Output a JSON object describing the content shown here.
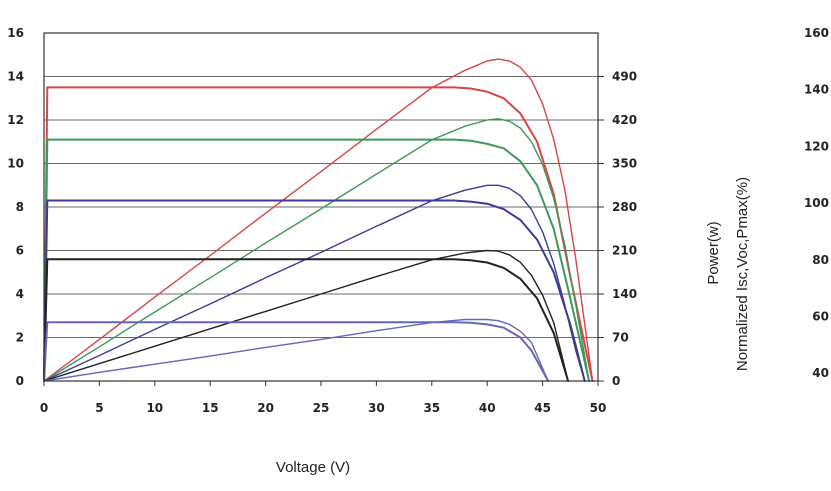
{
  "chart_data": {
    "type": "line",
    "title": "",
    "xlabel": "Voltage (V)",
    "ylabel_right": "Power(w)",
    "ylabel_far_right": "Normalized Isc,Voc,Pmax(%)",
    "xlim": [
      0,
      50
    ],
    "ylim_left": [
      0,
      16
    ],
    "ylim_right": [
      0,
      560
    ],
    "x_ticks": [
      "0",
      "5",
      "10",
      "15",
      "20",
      "25",
      "30",
      "35",
      "40",
      "45",
      "50"
    ],
    "y_ticks_left": [
      "0",
      "2",
      "4",
      "6",
      "8",
      "10",
      "12",
      "14",
      "16"
    ],
    "y_ticks_right": [
      "0",
      "70",
      "140",
      "210",
      "280",
      "350",
      "420",
      "490"
    ],
    "y_ticks_far_right": [
      "40",
      "60",
      "80",
      "100",
      "120",
      "140",
      "160"
    ],
    "grid": "horizontal",
    "series": [
      {
        "color": "#d94545",
        "kind": "current",
        "x": [
          0,
          0.3,
          37,
          38.5,
          40,
          41.5,
          43,
          44.5,
          46,
          47.5,
          49.5
        ],
        "values": [
          0,
          13.5,
          13.5,
          13.45,
          13.3,
          13.0,
          12.3,
          11.0,
          8.6,
          4.8,
          0
        ]
      },
      {
        "color": "#d94545",
        "kind": "power",
        "x": [
          0,
          5,
          10,
          15,
          20,
          25,
          30,
          35,
          38,
          40,
          41,
          42,
          43,
          44,
          45,
          46,
          47,
          48,
          49.5
        ],
        "values": [
          0,
          67,
          135,
          202,
          270,
          337,
          405,
          472,
          500,
          515,
          518,
          515,
          505,
          484,
          446,
          389,
          308,
          196,
          0
        ]
      },
      {
        "color": "#3a9a5a",
        "kind": "current",
        "x": [
          0,
          0.3,
          37,
          38.5,
          40,
          41.5,
          43,
          44.5,
          46,
          47.5,
          49.2
        ],
        "values": [
          0,
          11.1,
          11.1,
          11.05,
          10.9,
          10.7,
          10.1,
          9.0,
          7.0,
          3.8,
          0
        ]
      },
      {
        "color": "#3a9a5a",
        "kind": "power",
        "x": [
          0,
          5,
          10,
          15,
          20,
          25,
          30,
          35,
          38,
          40,
          41,
          42,
          43,
          44,
          45,
          46,
          47,
          48,
          49.2
        ],
        "values": [
          0,
          55,
          111,
          166,
          222,
          277,
          333,
          388,
          410,
          420,
          422,
          418,
          407,
          385,
          348,
          294,
          219,
          122,
          0
        ]
      },
      {
        "color": "#3b3b96",
        "kind": "current",
        "x": [
          0,
          0.3,
          37,
          38.5,
          40,
          41.5,
          43,
          44.5,
          46,
          47.5,
          48.8
        ],
        "values": [
          0,
          8.3,
          8.3,
          8.25,
          8.15,
          7.9,
          7.4,
          6.5,
          5.0,
          2.6,
          0
        ]
      },
      {
        "color": "#3b3b96",
        "kind": "power",
        "x": [
          0,
          5,
          10,
          15,
          20,
          25,
          30,
          35,
          38,
          40,
          41,
          42,
          43,
          44,
          45,
          46,
          47,
          48,
          48.8
        ],
        "values": [
          0,
          41,
          83,
          124,
          166,
          207,
          249,
          290,
          307,
          315,
          315,
          310,
          298,
          276,
          240,
          189,
          122,
          49,
          0
        ]
      },
      {
        "color": "#222222",
        "kind": "current",
        "x": [
          0,
          0.3,
          37,
          38.5,
          40,
          41.5,
          43,
          44.5,
          46,
          47.3
        ],
        "values": [
          0,
          5.6,
          5.6,
          5.55,
          5.45,
          5.2,
          4.7,
          3.8,
          2.2,
          0
        ]
      },
      {
        "color": "#222222",
        "kind": "power",
        "x": [
          0,
          5,
          10,
          15,
          20,
          25,
          30,
          35,
          38,
          40,
          41,
          42,
          43,
          44,
          45,
          46,
          47.3
        ],
        "values": [
          0,
          28,
          56,
          84,
          112,
          140,
          168,
          195,
          206,
          210,
          209,
          203,
          191,
          170,
          138,
          94,
          0
        ]
      },
      {
        "color": "#6666b8",
        "kind": "current",
        "x": [
          0,
          0.3,
          37,
          38.5,
          40,
          41.5,
          43,
          44,
          45.5
        ],
        "values": [
          0,
          2.7,
          2.7,
          2.68,
          2.6,
          2.45,
          2.0,
          1.4,
          0
        ]
      },
      {
        "color": "#6666b8",
        "kind": "power",
        "x": [
          0,
          5,
          10,
          15,
          20,
          25,
          30,
          35,
          38,
          40,
          41,
          42,
          43,
          44,
          45.5
        ],
        "values": [
          0,
          14,
          27,
          40,
          54,
          67,
          81,
          94,
          99,
          99,
          97,
          91,
          80,
          62,
          0
        ]
      }
    ]
  }
}
